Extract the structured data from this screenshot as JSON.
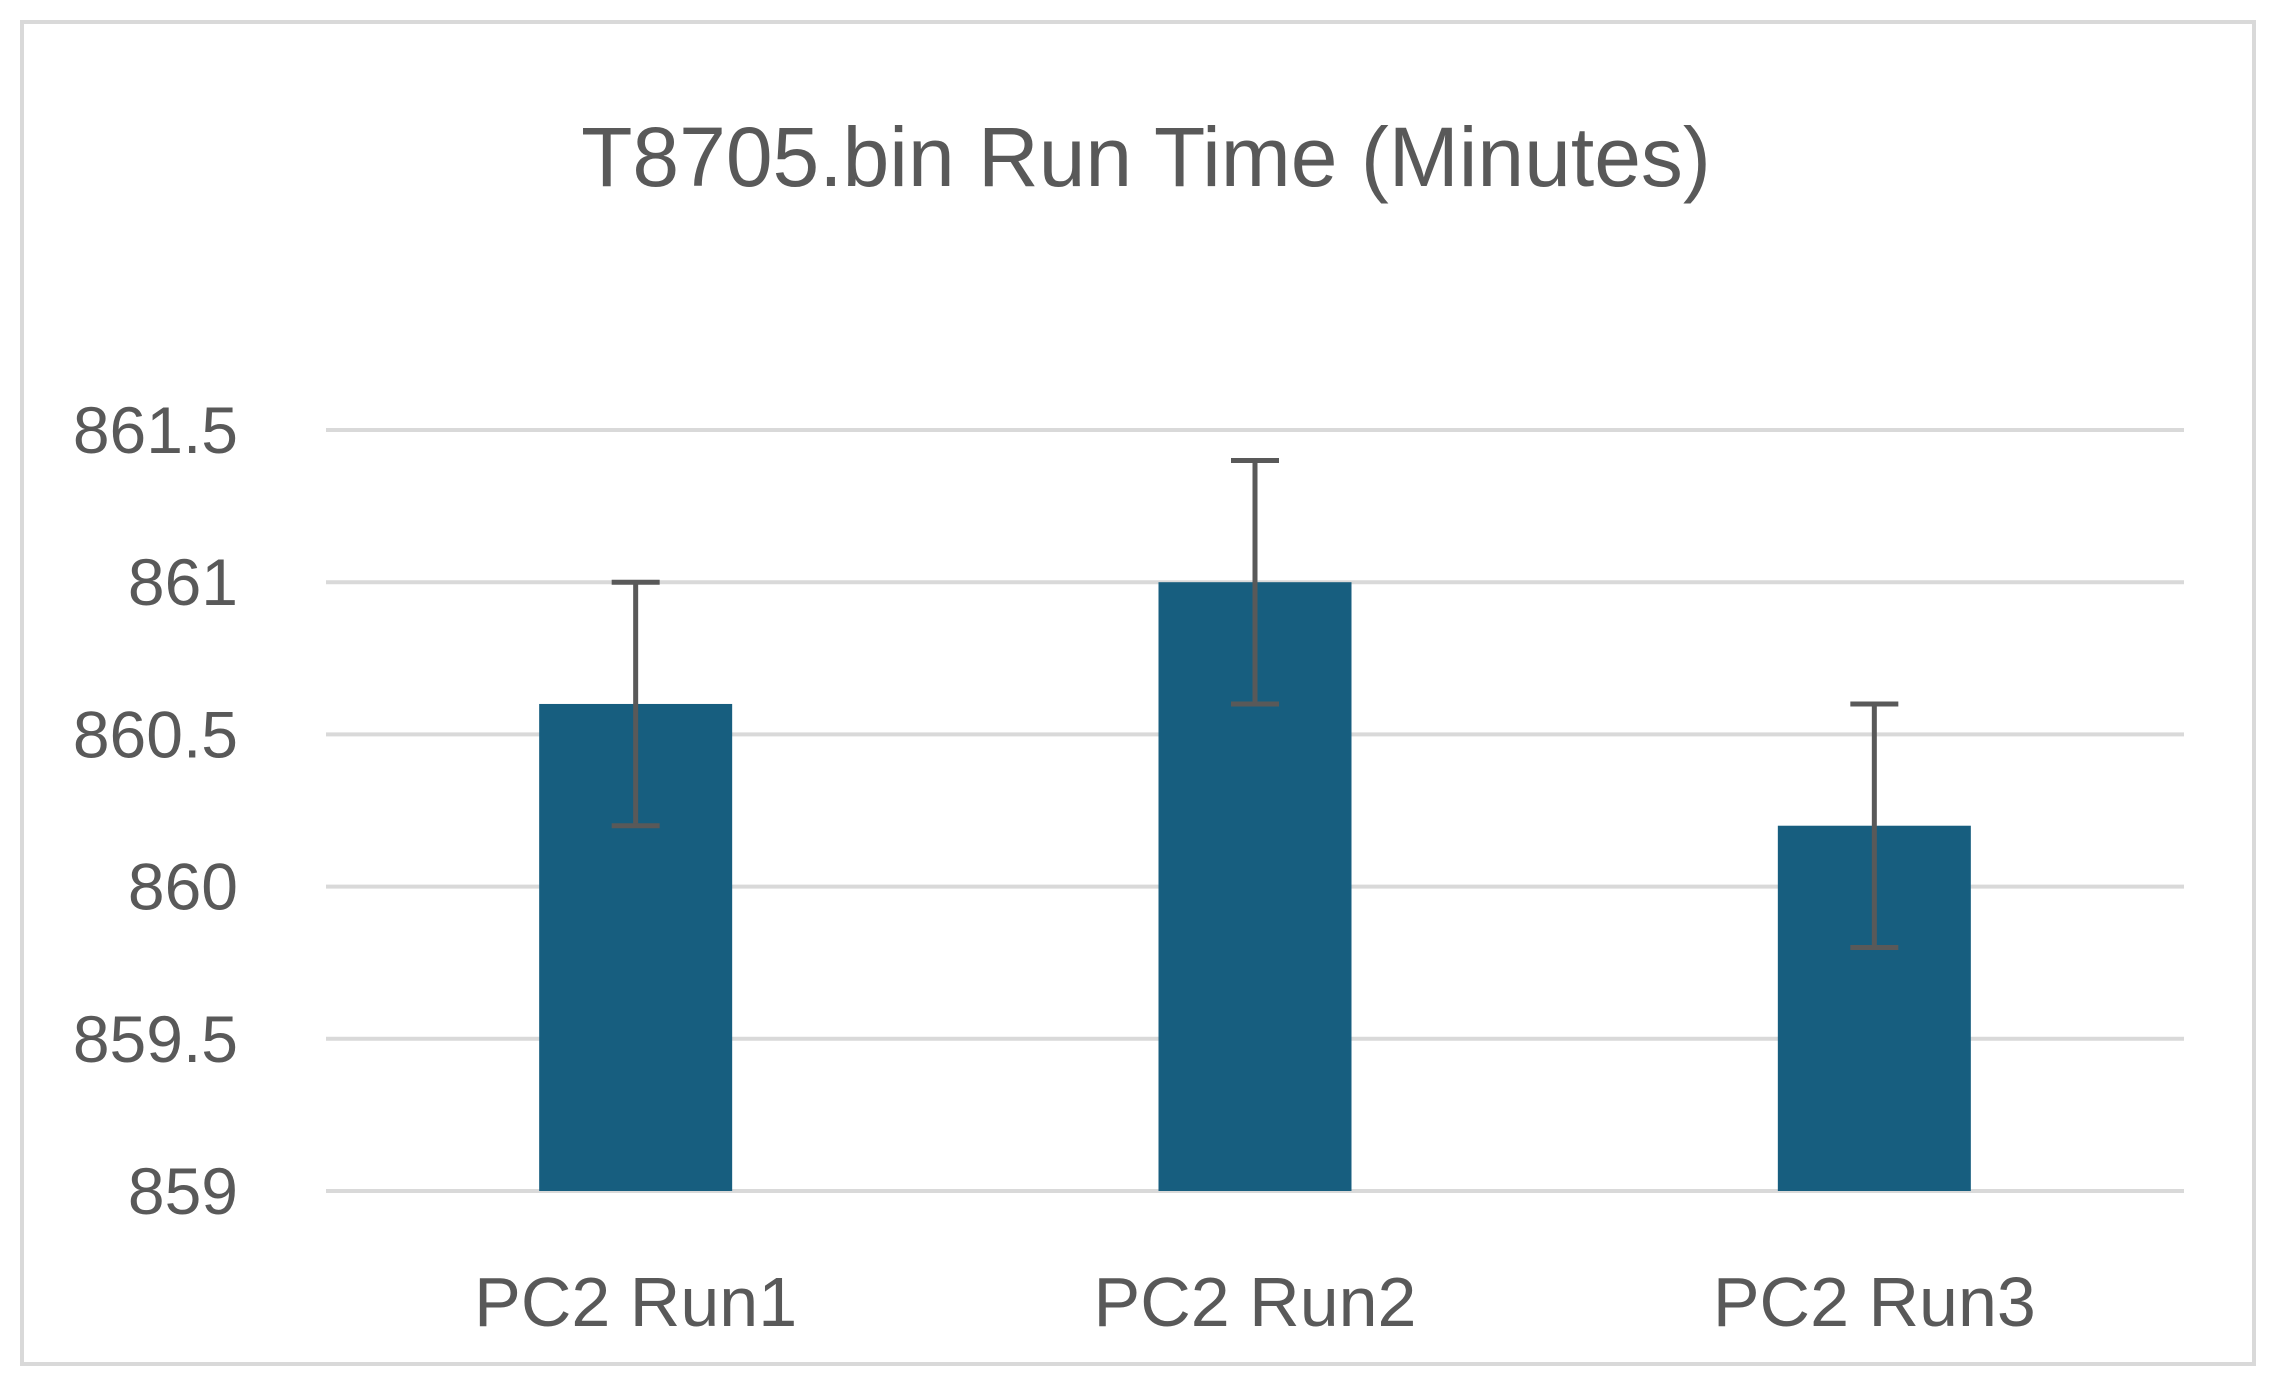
{
  "chart_data": {
    "type": "bar",
    "title": "T8705.bin Run Time (Minutes)",
    "xlabel": "",
    "ylabel": "",
    "categories": [
      "PC2 Run1",
      "PC2 Run2",
      "PC2 Run3"
    ],
    "values": [
      860.6,
      861.0,
      860.2
    ],
    "error_bars": [
      0.4,
      0.4,
      0.4
    ],
    "ylim": [
      859,
      861.5
    ],
    "yticks": [
      859,
      859.5,
      860,
      860.5,
      861,
      861.5
    ],
    "ytick_labels": [
      "859",
      "859.5",
      "860",
      "860.5",
      "861",
      "861.5"
    ],
    "grid": true,
    "legend": "none",
    "colors": {
      "bar": "#175e7f",
      "error_bar": "#595959",
      "grid": "#d9d9d9",
      "text": "#595959",
      "border": "#d9d9d9"
    }
  }
}
